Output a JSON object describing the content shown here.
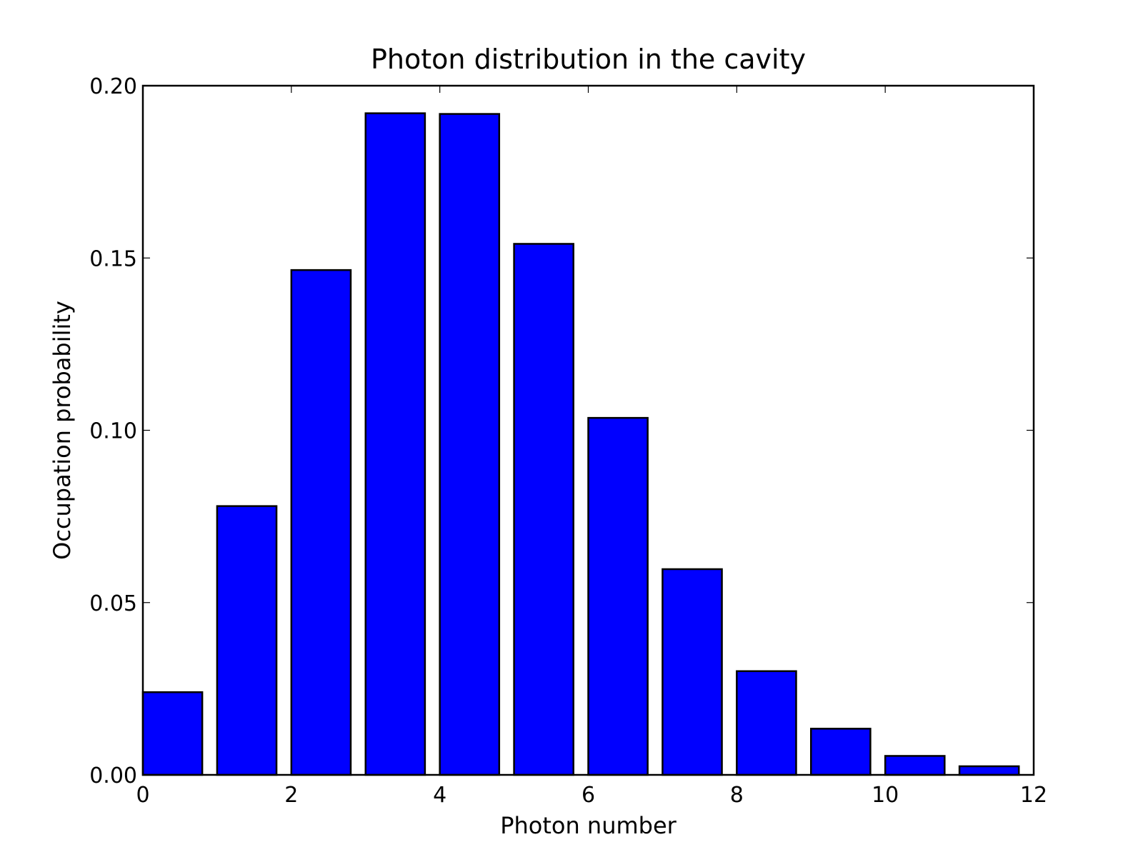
{
  "chart_data": {
    "type": "bar",
    "title": "Photon distribution in the cavity",
    "xlabel": "Photon number",
    "ylabel": "Occupation probability",
    "x": [
      0,
      1,
      2,
      3,
      4,
      5,
      6,
      7,
      8,
      9,
      10,
      11
    ],
    "values": [
      0.024,
      0.078,
      0.1465,
      0.192,
      0.1918,
      0.1541,
      0.1036,
      0.0597,
      0.0301,
      0.0134,
      0.0055,
      0.0025
    ],
    "bar_width": 0.8,
    "xlim": [
      0,
      12
    ],
    "ylim": [
      0,
      0.2
    ],
    "xticks": [
      0,
      2,
      4,
      6,
      8,
      10,
      12
    ],
    "xtick_labels": [
      "0",
      "2",
      "4",
      "6",
      "8",
      "10",
      "12"
    ],
    "yticks": [
      0,
      0.05,
      0.1,
      0.15,
      0.2
    ],
    "ytick_labels": [
      "0.00",
      "0.05",
      "0.10",
      "0.15",
      "0.20"
    ],
    "grid": false,
    "bar_color": "#0000ff",
    "edge_color": "#000000"
  }
}
